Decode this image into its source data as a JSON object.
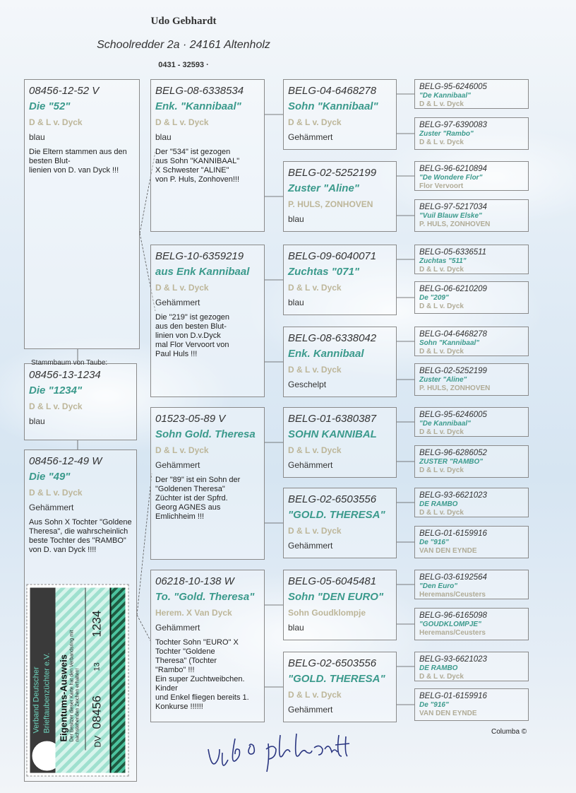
{
  "header": {
    "owner": "Udo Gebhardt",
    "address": "Schoolredder 2a  ·  24161 Altenholz",
    "phone": "0431 - 32593  ·"
  },
  "colors": {
    "name": "#3b9a8c",
    "breeder": "#bdb699",
    "border": "#8a8a8a"
  },
  "subject": {
    "label": "Stammbaum von Taube:",
    "id": "08456-13-1234",
    "name": "Die \"1234\"",
    "breeder": "D & L v. Dyck",
    "color": "blau"
  },
  "sire": {
    "id": "08456-12-52 V",
    "name": "Die \"52\"",
    "breeder": "D & L v. Dyck",
    "color": "blau",
    "note": "Die Eltern stammen aus den besten Blut-\nlienien von D. van Dyck !!!"
  },
  "dam": {
    "id": "08456-12-49 W",
    "name": "Die \"49\"",
    "breeder": "D & L v. Dyck",
    "color": "Gehämmert",
    "note": "Aus Sohn X Tochter \"Goldene Theresa\", die wahrscheinlich beste Tochter des \"RAMBO\" von D. van Dyck !!!!"
  },
  "gen2": [
    {
      "id": "BELG-08-6338534",
      "name": "Enk. \"Kannibaal\"",
      "breeder": "D & L v. Dyck",
      "color": "blau",
      "note": "Der \"534\" ist gezogen\naus Sohn \"KANNIBAAL\"\nX Schwester \"ALINE\"\nvon P. Huls, Zonhoven!!!"
    },
    {
      "id": "BELG-10-6359219",
      "name": "aus Enk Kannibaal",
      "breeder": "D & L v. Dyck",
      "color": "Gehämmert",
      "note": "Die \"219\" ist gezogen\naus den besten Blut-\nlinien von D.v.Dyck\nmal Flor Vervoort von\nPaul Huls !!!"
    },
    {
      "id": "01523-05-89 V",
      "name": "Sohn Gold. Theresa",
      "breeder": "D & L v. Dyck",
      "color": "Gehämmert",
      "note": "Der \"89\" ist ein Sohn  der\n\"Goldenen Theresa\"\nZüchter ist der Spfrd.\nGeorg AGNES aus\nEmlichheim !!!"
    },
    {
      "id": "06218-10-138 W",
      "name": "To. \"Gold. Theresa\"",
      "breeder": "Herem. X Van Dyck",
      "color": "Gehämmert",
      "note": "Tochter Sohn \"EURO\" X\nTochter \"Goldene\nTheresa\" (Tochter\n\"Rambo\" !!!\nEin super Zuchtweibchen.\nKinder\nund Enkel fliegen bereits 1.\nKonkurse !!!!!!"
    }
  ],
  "gen3": [
    {
      "id": "BELG-04-6468278",
      "name": "Sohn \"Kannibaal\"",
      "breeder": "D & L v. Dyck",
      "color": "Gehämmert"
    },
    {
      "id": "BELG-02-5252199",
      "name": "Zuster \"Aline\"",
      "breeder": "P. HULS, ZONHOVEN",
      "color": "blau"
    },
    {
      "id": "BELG-09-6040071",
      "name": "Zuchtas \"071\"",
      "breeder": "D & L v. Dyck",
      "color": "blau"
    },
    {
      "id": "BELG-08-6338042",
      "name": "Enk. Kannibaal",
      "breeder": "D & L v. Dyck",
      "color": "Geschelpt"
    },
    {
      "id": "BELG-01-6380387",
      "name": "SOHN KANNIBAL",
      "breeder": "D & L v. Dyck",
      "color": "Gehämmert"
    },
    {
      "id": "BELG-02-6503556",
      "name": "\"GOLD. THERESA\"",
      "breeder": "D & L v. Dyck",
      "color": "Gehämmert"
    },
    {
      "id": "BELG-05-6045481",
      "name": "Sohn \"DEN EURO\"",
      "breeder": "Sohn Goudklompje",
      "color": "blau"
    },
    {
      "id": "BELG-02-6503556",
      "name": "\"GOLD. THERESA\"",
      "breeder": "D & L v. Dyck",
      "color": "Gehämmert"
    }
  ],
  "gen4": [
    {
      "id": "BELG-95-6246005",
      "name": "\"De Kannibaal\"",
      "breeder": "D & L v. Dyck"
    },
    {
      "id": "BELG-97-6390083",
      "name": "Zuster \"Rambo\"",
      "breeder": "D & L v. Dyck"
    },
    {
      "id": "BELG-96-6210894",
      "name": "\"De Wondere Flor\"",
      "breeder": "Flor Vervoort"
    },
    {
      "id": "BELG-97-5217034",
      "name": "\"Vuil Blauw Elske\"",
      "breeder": "P. HULS, ZONHOVEN"
    },
    {
      "id": "BELG-05-6336511",
      "name": "Zuchtas \"511\"",
      "breeder": "D & L v. Dyck"
    },
    {
      "id": "BELG-06-6210209",
      "name": "De \"209\"",
      "breeder": "D & L v. Dyck"
    },
    {
      "id": "BELG-04-6468278",
      "name": "Sohn \"Kannibaal\"",
      "breeder": "D & L v. Dyck"
    },
    {
      "id": "BELG-02-5252199",
      "name": "Zuster \"Aline\"",
      "breeder": "P. HULS, ZONHOVEN"
    },
    {
      "id": "BELG-95-6246005",
      "name": "\"De Kannibaal\"",
      "breeder": "D & L v. Dyck"
    },
    {
      "id": "BELG-96-6286052",
      "name": "ZUSTER \"RAMBO\"",
      "breeder": "D & L v. Dyck"
    },
    {
      "id": "BELG-93-6621023",
      "name": "DE RAMBO",
      "breeder": "D & L v. Dyck"
    },
    {
      "id": "BELG-01-6159916",
      "name": "De \"916\"",
      "breeder": "VAN DEN EYNDE"
    },
    {
      "id": "BELG-03-6192564",
      "name": "\"Den Euro\"",
      "breeder": "Heremans/Ceusters"
    },
    {
      "id": "BELG-96-6165098",
      "name": "\"GOUDKLOMPJE\"",
      "breeder": "Heremans/Ceusters"
    },
    {
      "id": "BELG-93-6621023",
      "name": "DE RAMBO",
      "breeder": "D & L v. Dyck"
    },
    {
      "id": "BELG-01-6159916",
      "name": "De \"916\"",
      "breeder": "VAN DEN EYNDE"
    }
  ],
  "card": {
    "org_line1": "Verband Deutscher",
    "org_line2": "Brieftaubenzüchter e.V.",
    "title": "Eigentums-Ausweis",
    "text": "Der Besitzer dieser Karte hat den Verbandsring mit nachstehenden Zeichen erhalten!",
    "prefix": "DV",
    "club": "08456",
    "year": "13",
    "number": "1234"
  },
  "footer": {
    "credit": "Columba ©",
    "signature": "Udo Gebhardt"
  }
}
